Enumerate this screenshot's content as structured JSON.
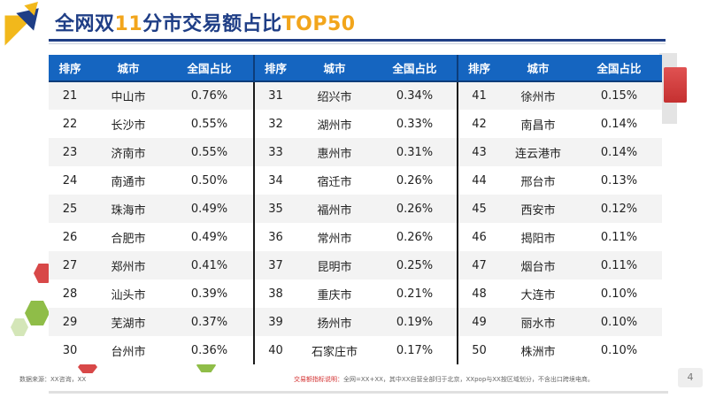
{
  "title": {
    "part1": "全网双",
    "part2": "11",
    "part3": "分市交易额占比",
    "part4": "TOP50"
  },
  "table": {
    "headers": [
      "排序",
      "城市",
      "全国占比",
      "排序",
      "城市",
      "全国占比",
      "排序",
      "城市",
      "全国占比"
    ],
    "rows": [
      [
        "21",
        "中山市",
        "0.76%",
        "31",
        "绍兴市",
        "0.34%",
        "41",
        "徐州市",
        "0.15%"
      ],
      [
        "22",
        "长沙市",
        "0.55%",
        "32",
        "湖州市",
        "0.33%",
        "42",
        "南昌市",
        "0.14%"
      ],
      [
        "23",
        "济南市",
        "0.55%",
        "33",
        "惠州市",
        "0.31%",
        "43",
        "连云港市",
        "0.14%"
      ],
      [
        "24",
        "南通市",
        "0.50%",
        "34",
        "宿迁市",
        "0.26%",
        "44",
        "邢台市",
        "0.13%"
      ],
      [
        "25",
        "珠海市",
        "0.49%",
        "35",
        "福州市",
        "0.26%",
        "45",
        "西安市",
        "0.12%"
      ],
      [
        "26",
        "合肥市",
        "0.49%",
        "36",
        "常州市",
        "0.26%",
        "46",
        "揭阳市",
        "0.11%"
      ],
      [
        "27",
        "郑州市",
        "0.41%",
        "37",
        "昆明市",
        "0.25%",
        "47",
        "烟台市",
        "0.11%"
      ],
      [
        "28",
        "汕头市",
        "0.39%",
        "38",
        "重庆市",
        "0.21%",
        "48",
        "大连市",
        "0.10%"
      ],
      [
        "29",
        "芜湖市",
        "0.37%",
        "39",
        "扬州市",
        "0.19%",
        "49",
        "丽水市",
        "0.10%"
      ],
      [
        "30",
        "台州市",
        "0.36%",
        "40",
        "石家庄市",
        "0.17%",
        "50",
        "株洲市",
        "0.10%"
      ]
    ]
  },
  "footer": {
    "source": "数据来源：XX咨询，XX",
    "note_label": "交易额指标说明：",
    "note_text": "全网=XX+XX，其中XX自营全部归于北京，XXpop与XX按区域划分，不含出口跨境电商。",
    "page_number": "4"
  },
  "colors": {
    "accent_blue": "#1565c0",
    "title_blue": "#1f3e86",
    "title_highlight": "#f2a51b"
  }
}
